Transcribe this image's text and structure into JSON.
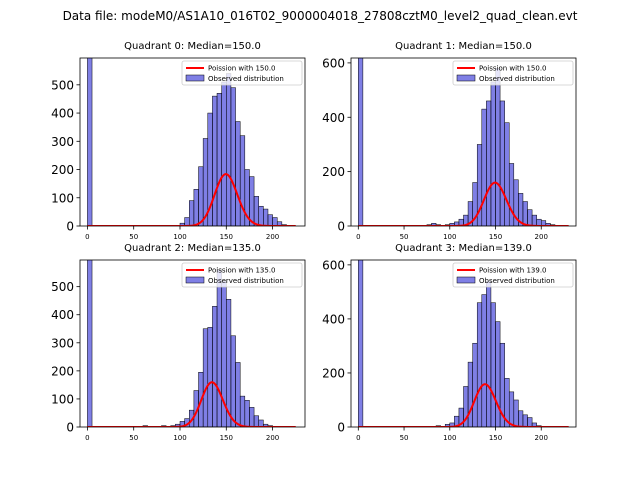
{
  "figure": {
    "suptitle": "Data file: modeM0/AS1A10_016T02_9000004018_27808cztM0_level2_quad_clean.evt"
  },
  "chart_data": [
    {
      "type": "bar",
      "title": "Quadrant 0: Median=150.0",
      "xlim": [
        -8,
        235
      ],
      "ylim": [
        0,
        595
      ],
      "xticks": [
        0,
        50,
        100,
        150,
        200
      ],
      "yticks": [
        0,
        100,
        200,
        300,
        400,
        500
      ],
      "bin_width": 5,
      "bins": [
        [
          0,
          600
        ],
        [
          100,
          10
        ],
        [
          105,
          30
        ],
        [
          110,
          90
        ],
        [
          115,
          130
        ],
        [
          120,
          210
        ],
        [
          125,
          310
        ],
        [
          130,
          400
        ],
        [
          135,
          460
        ],
        [
          140,
          470
        ],
        [
          145,
          510
        ],
        [
          150,
          540
        ],
        [
          155,
          490
        ],
        [
          160,
          370
        ],
        [
          165,
          320
        ],
        [
          170,
          200
        ],
        [
          175,
          175
        ],
        [
          180,
          105
        ],
        [
          185,
          70
        ],
        [
          190,
          60
        ],
        [
          195,
          40
        ],
        [
          200,
          30
        ],
        [
          205,
          15
        ],
        [
          210,
          5
        ]
      ],
      "fit": {
        "lambda": 150.0,
        "xmax": 225
      },
      "legend": {
        "fit_label": "Poission with 150.0",
        "hist_label": "Observed distribution"
      }
    },
    {
      "type": "bar",
      "title": "Quadrant 1: Median=150.0",
      "xlim": [
        -8,
        238
      ],
      "ylim": [
        0,
        618
      ],
      "xticks": [
        0,
        50,
        100,
        150,
        200
      ],
      "yticks": [
        0,
        200,
        400,
        600
      ],
      "bin_width": 5,
      "bins": [
        [
          0,
          620
        ],
        [
          75,
          5
        ],
        [
          80,
          10
        ],
        [
          85,
          5
        ],
        [
          95,
          5
        ],
        [
          100,
          10
        ],
        [
          105,
          15
        ],
        [
          110,
          25
        ],
        [
          115,
          40
        ],
        [
          120,
          90
        ],
        [
          125,
          160
        ],
        [
          130,
          300
        ],
        [
          135,
          430
        ],
        [
          140,
          460
        ],
        [
          145,
          530
        ],
        [
          150,
          580
        ],
        [
          155,
          460
        ],
        [
          160,
          380
        ],
        [
          165,
          230
        ],
        [
          170,
          170
        ],
        [
          175,
          120
        ],
        [
          180,
          90
        ],
        [
          185,
          60
        ],
        [
          190,
          40
        ],
        [
          195,
          25
        ],
        [
          200,
          20
        ],
        [
          205,
          10
        ],
        [
          210,
          5
        ]
      ],
      "fit": {
        "lambda": 150.0,
        "xmax": 230
      },
      "legend": {
        "fit_label": "Poission with 150.0",
        "hist_label": "Observed distribution"
      }
    },
    {
      "type": "bar",
      "title": "Quadrant 2: Median=135.0",
      "xlim": [
        -8,
        235
      ],
      "ylim": [
        0,
        595
      ],
      "xticks": [
        0,
        50,
        100,
        150,
        200
      ],
      "yticks": [
        0,
        100,
        200,
        300,
        400,
        500
      ],
      "bin_width": 5,
      "bins": [
        [
          0,
          600
        ],
        [
          60,
          5
        ],
        [
          80,
          5
        ],
        [
          90,
          5
        ],
        [
          95,
          10
        ],
        [
          100,
          20
        ],
        [
          105,
          30
        ],
        [
          110,
          60
        ],
        [
          115,
          130
        ],
        [
          120,
          195
        ],
        [
          125,
          350
        ],
        [
          130,
          355
        ],
        [
          135,
          430
        ],
        [
          140,
          560
        ],
        [
          145,
          520
        ],
        [
          150,
          455
        ],
        [
          155,
          325
        ],
        [
          160,
          230
        ],
        [
          165,
          110
        ],
        [
          170,
          95
        ],
        [
          175,
          70
        ],
        [
          180,
          40
        ],
        [
          185,
          25
        ],
        [
          190,
          10
        ],
        [
          195,
          5
        ]
      ],
      "fit": {
        "lambda": 135.0,
        "xmax": 225
      },
      "legend": {
        "fit_label": "Poission with 135.0",
        "hist_label": "Observed distribution"
      }
    },
    {
      "type": "bar",
      "title": "Quadrant 3: Median=139.0",
      "xlim": [
        -8,
        238
      ],
      "ylim": [
        0,
        618
      ],
      "xticks": [
        0,
        50,
        100,
        150,
        200
      ],
      "yticks": [
        0,
        200,
        400,
        600
      ],
      "bin_width": 5,
      "bins": [
        [
          0,
          620
        ],
        [
          85,
          5
        ],
        [
          95,
          10
        ],
        [
          100,
          15
        ],
        [
          105,
          40
        ],
        [
          110,
          70
        ],
        [
          115,
          150
        ],
        [
          120,
          240
        ],
        [
          125,
          310
        ],
        [
          130,
          460
        ],
        [
          135,
          490
        ],
        [
          140,
          540
        ],
        [
          145,
          460
        ],
        [
          150,
          390
        ],
        [
          155,
          310
        ],
        [
          160,
          180
        ],
        [
          165,
          130
        ],
        [
          170,
          100
        ],
        [
          175,
          60
        ],
        [
          180,
          45
        ],
        [
          185,
          35
        ],
        [
          190,
          15
        ],
        [
          195,
          5
        ]
      ],
      "fit": {
        "lambda": 139.0,
        "xmax": 230
      },
      "legend": {
        "fit_label": "Poission with 139.0",
        "hist_label": "Observed distribution"
      }
    }
  ]
}
